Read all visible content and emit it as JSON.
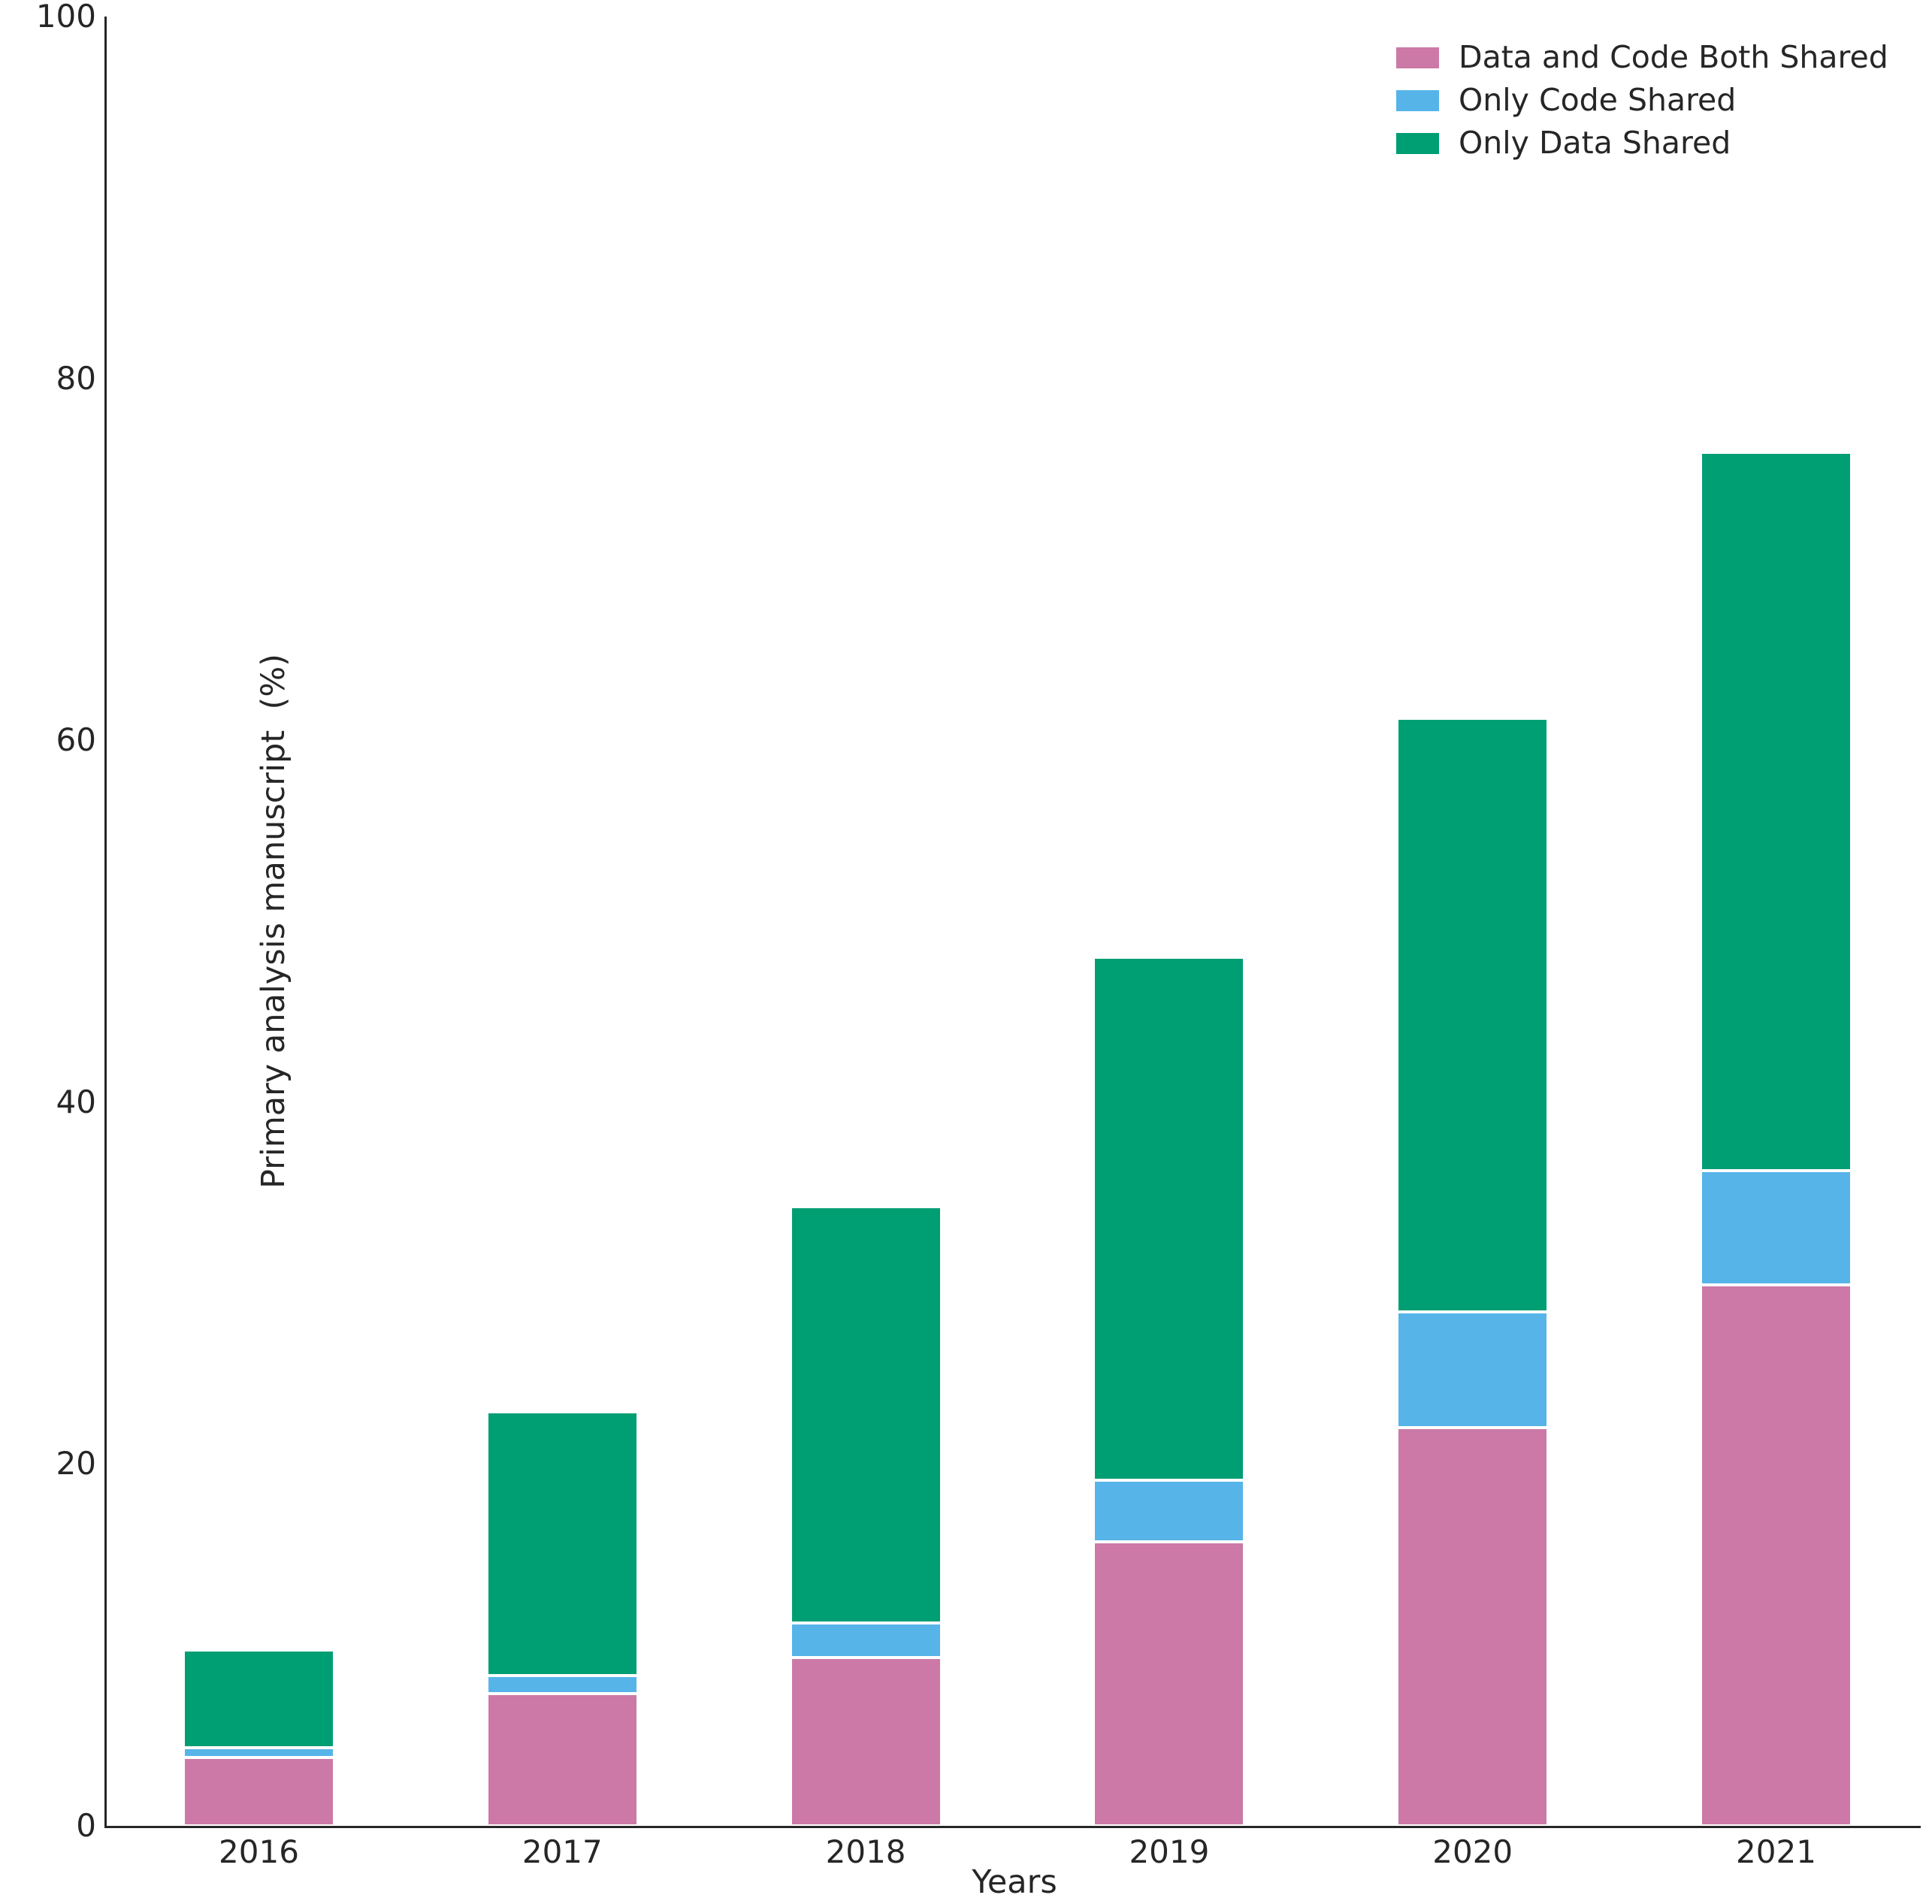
{
  "chart_data": {
    "type": "bar",
    "stacked": true,
    "title": "",
    "xlabel": "Years",
    "ylabel": "Primary analysis manuscript  (%)",
    "categories": [
      "2016",
      "2017",
      "2018",
      "2019",
      "2020",
      "2021"
    ],
    "series": [
      {
        "name": "Data and Code Both Shared",
        "color": "#CC79A7",
        "values": [
          3.8,
          7.3,
          9.3,
          15.7,
          22.0,
          29.9
        ]
      },
      {
        "name": "Only Code Shared",
        "color": "#56B4E9",
        "values": [
          0.5,
          1.0,
          1.9,
          3.4,
          6.4,
          6.3
        ]
      },
      {
        "name": "Only Data Shared",
        "color": "#009E73",
        "values": [
          5.4,
          14.6,
          23.0,
          28.9,
          32.8,
          39.7
        ]
      }
    ],
    "stack_totals": [
      9.7,
      22.9,
      34.2,
      48.0,
      61.2,
      75.9
    ],
    "ylim": [
      0,
      100
    ],
    "yticks": [
      0,
      20,
      40,
      60,
      80,
      100
    ],
    "grid": false,
    "legend_position": "upper-right",
    "legend_order": [
      "Data and Code Both Shared",
      "Only Code Shared",
      "Only Data Shared"
    ],
    "axis_color": "#262626",
    "text_color": "#262626"
  }
}
